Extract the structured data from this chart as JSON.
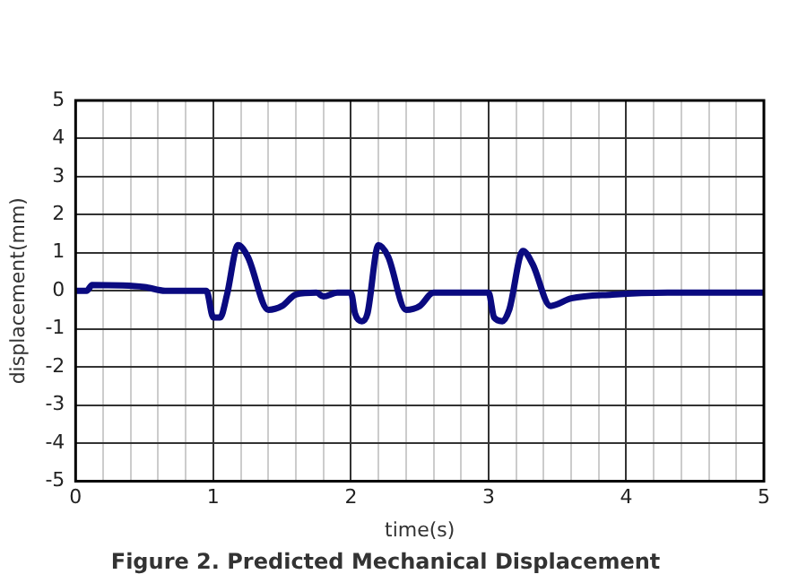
{
  "chart_data": {
    "type": "line",
    "title": "Figure 2. Predicted Mechanical Displacement",
    "xlabel": "time(s)",
    "ylabel": "displacement(mm)",
    "x": [
      0,
      0.08,
      0.12,
      0.5,
      0.65,
      0.95,
      1.0,
      1.05,
      1.1,
      1.18,
      1.25,
      1.4,
      1.5,
      1.6,
      1.75,
      1.8,
      1.9,
      2.0,
      2.03,
      2.08,
      2.12,
      2.2,
      2.27,
      2.4,
      2.5,
      2.6,
      3.0,
      3.04,
      3.1,
      3.15,
      3.25,
      3.32,
      3.45,
      3.6,
      3.9,
      4.3,
      5
    ],
    "series": [
      {
        "color": "#0a0a80",
        "values": [
          0,
          0,
          0.15,
          0.1,
          0,
          0,
          -0.7,
          -0.7,
          -0.1,
          1.2,
          0.9,
          -0.5,
          -0.4,
          -0.1,
          -0.05,
          -0.15,
          -0.05,
          -0.05,
          -0.6,
          -0.8,
          -0.6,
          1.2,
          0.9,
          -0.5,
          -0.4,
          -0.05,
          -0.05,
          -0.7,
          -0.8,
          -0.5,
          1.05,
          0.7,
          -0.4,
          -0.2,
          -0.1,
          -0.05,
          -0.05
        ]
      }
    ],
    "xlim": [
      0,
      5
    ],
    "ylim": [
      -5,
      5
    ],
    "xticks": [
      0,
      {
        "value": 0.2,
        "label": null
      },
      {
        "value": 0.4,
        "label": null
      },
      {
        "value": 0.6,
        "label": null
      },
      {
        "value": 0.8,
        "label": null
      },
      1,
      {
        "value": 1.2,
        "label": null
      },
      {
        "value": 1.4,
        "label": null
      },
      {
        "value": 1.6,
        "label": null
      },
      {
        "value": 1.8,
        "label": null
      },
      2,
      {
        "value": 2.2,
        "label": null
      },
      {
        "value": 2.4,
        "label": null
      },
      {
        "value": 2.6,
        "label": null
      },
      {
        "value": 2.8,
        "label": null
      },
      3,
      {
        "value": 3.2,
        "label": null
      },
      {
        "value": 3.4,
        "label": null
      },
      {
        "value": 3.6,
        "label": null
      },
      {
        "value": 3.8,
        "label": null
      },
      4,
      {
        "value": 4.2,
        "label": null
      },
      {
        "value": 4.4,
        "label": null
      },
      {
        "value": 4.6,
        "label": null
      },
      {
        "value": 4.8,
        "label": null
      },
      5
    ],
    "yticks": [
      -5,
      -4,
      -3,
      -2,
      -1,
      0,
      1,
      2,
      3,
      4,
      5
    ],
    "grid": true,
    "legend": false,
    "marker": "none",
    "line_style": "solid"
  }
}
